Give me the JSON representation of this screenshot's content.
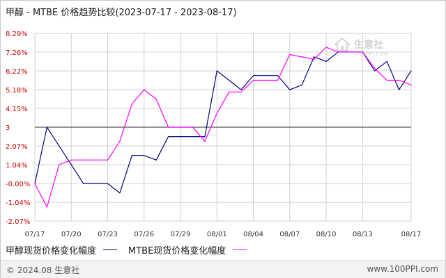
{
  "header": {
    "title": "甲醇 - MTBE  价格趋势比较(2023-07-17 - 2023-08-17)"
  },
  "watermark": {
    "main": "生意社",
    "sub": "100PPI.COM"
  },
  "footer": {
    "copyright": "© 2024.08 生意社",
    "url": "www.100PPI.com"
  },
  "colors": {
    "methanol": "#000080",
    "mtbe": "#ff00ff",
    "baseline": "#555555",
    "grid": "#d0d0d0",
    "tick_text": "#cc0000"
  },
  "chart_data": {
    "type": "line",
    "title": "甲醇 - MTBE  价格趋势比较(2023-07-17 - 2023-08-17)",
    "xlabel": "",
    "ylabel": "",
    "grid": true,
    "y_ticks": [
      "8.29%",
      "7.26%",
      "6.22%",
      "5.18%",
      "4.15%",
      "3",
      "2.07%",
      "1.04%",
      "-0.00%",
      "-1.04%",
      "-2.07%"
    ],
    "y_tick_values": [
      8.29,
      7.26,
      6.22,
      5.18,
      4.15,
      3.11,
      2.07,
      1.04,
      0,
      -1.04,
      -2.07
    ],
    "ylim": [
      -2.07,
      8.29
    ],
    "baseline_value": 3.11,
    "x_tick_labels": [
      "07/17",
      "07/20",
      "07/23",
      "07/26",
      "07/29",
      "08/01",
      "08/04",
      "08/07",
      "08/10",
      "08/13",
      "08/17"
    ],
    "x_tick_days": [
      0,
      3,
      6,
      9,
      12,
      15,
      18,
      21,
      24,
      27,
      31
    ],
    "x_range_days": [
      0,
      31
    ],
    "legend_position": "bottom",
    "series": [
      {
        "name": "甲醇现货价格变化幅度",
        "color": "#000080",
        "x": [
          0,
          1,
          2,
          3,
          4,
          5,
          6,
          7,
          8,
          9,
          10,
          11,
          12,
          13,
          14,
          15,
          16,
          17,
          18,
          19,
          20,
          21,
          22,
          23,
          24,
          25,
          26,
          27,
          28,
          29,
          30,
          31
        ],
        "values": [
          0.0,
          3.11,
          2.07,
          1.04,
          0.0,
          0.0,
          0.0,
          -0.52,
          1.55,
          1.55,
          1.3,
          2.59,
          2.59,
          2.59,
          2.59,
          6.22,
          5.7,
          5.18,
          5.96,
          5.96,
          5.96,
          5.18,
          5.44,
          6.99,
          6.74,
          7.26,
          7.26,
          7.26,
          6.22,
          6.74,
          5.18,
          6.22
        ]
      },
      {
        "name": "MTBE现货价格变化幅度",
        "color": "#ff00ff",
        "x": [
          0,
          1,
          2,
          3,
          4,
          5,
          6,
          7,
          8,
          9,
          10,
          11,
          12,
          13,
          14,
          15,
          16,
          17,
          18,
          19,
          20,
          21,
          22,
          23,
          24,
          25,
          26,
          27,
          28,
          29,
          30,
          31
        ],
        "values": [
          0.0,
          -1.3,
          1.04,
          1.3,
          1.3,
          1.3,
          1.3,
          2.33,
          4.4,
          5.18,
          4.66,
          3.11,
          3.11,
          3.11,
          2.33,
          3.88,
          5.05,
          5.05,
          5.7,
          5.7,
          5.7,
          7.12,
          6.99,
          6.86,
          7.52,
          7.26,
          7.26,
          7.26,
          6.35,
          5.7,
          5.7,
          5.44
        ]
      }
    ]
  }
}
